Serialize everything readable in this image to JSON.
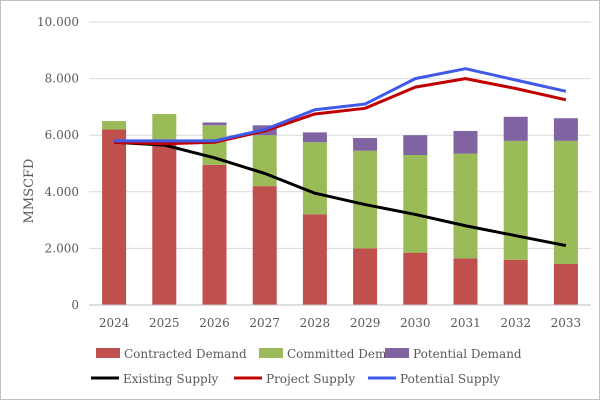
{
  "chart_data": {
    "type": "bar",
    "stacked": true,
    "title": "",
    "xlabel": "",
    "ylabel": "MMSCFD",
    "categories": [
      "2024",
      "2025",
      "2026",
      "2027",
      "2028",
      "2029",
      "2030",
      "2031",
      "2032",
      "2033"
    ],
    "ylim": [
      0,
      10000
    ],
    "yticks": [
      0,
      2000,
      4000,
      6000,
      8000,
      10000
    ],
    "ytick_labels": [
      "0",
      "2.000",
      "4.000",
      "6.000",
      "8.000",
      "10.000"
    ],
    "grid": "horizontal",
    "legend_position": "bottom",
    "bar_series": [
      {
        "name": "Contracted Demand",
        "color": "#c0504d",
        "values": [
          6200,
          5700,
          4950,
          4200,
          3200,
          2000,
          1850,
          1650,
          1600,
          1450
        ]
      },
      {
        "name": "Committed Demand",
        "color": "#9bbb59",
        "values": [
          300,
          1050,
          1400,
          1800,
          2550,
          3450,
          3450,
          3700,
          4200,
          4350
        ]
      },
      {
        "name": "Potential Demand",
        "color": "#8064a2",
        "values": [
          0,
          0,
          100,
          350,
          350,
          450,
          700,
          800,
          850,
          800
        ]
      }
    ],
    "line_series": [
      {
        "name": "Existing Supply",
        "color": "#000000",
        "values": [
          5750,
          5650,
          5200,
          4650,
          3950,
          3550,
          3200,
          2800,
          2450,
          2100
        ]
      },
      {
        "name": "Project Supply",
        "color": "#c00000",
        "values": [
          5750,
          5700,
          5750,
          6150,
          6750,
          6950,
          7700,
          8000,
          7650,
          7250
        ]
      },
      {
        "name": "Potential Supply",
        "color": "#3f5ae8",
        "values": [
          5800,
          5800,
          5800,
          6200,
          6900,
          7100,
          8000,
          8350,
          7950,
          7550
        ]
      }
    ]
  }
}
